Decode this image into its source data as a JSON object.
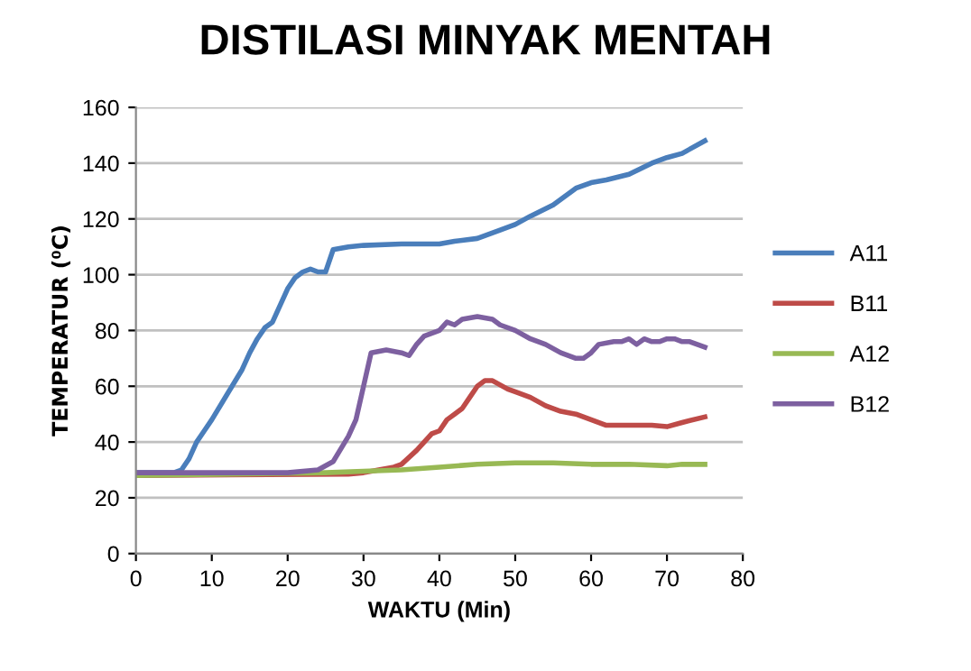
{
  "chart_data": {
    "type": "line",
    "title": "DISTILASI MINYAK MENTAH",
    "xlabel": "WAKTU (Min)",
    "ylabel": "TEMPERATUR (⁰C)",
    "xlim": [
      0,
      80
    ],
    "xticks": [
      0,
      10,
      20,
      30,
      40,
      50,
      60,
      70,
      80
    ],
    "ylim": [
      0,
      160
    ],
    "yticks": [
      0,
      20,
      40,
      60,
      80,
      100,
      120,
      140,
      160
    ],
    "grid": "y",
    "legend": "right",
    "marker": "none",
    "series": [
      {
        "name": "A11",
        "color": "#4a7ebb",
        "x": [
          0,
          5,
          6,
          7,
          8,
          9,
          10,
          12,
          14,
          15,
          16,
          17,
          18,
          19,
          20,
          21,
          22,
          23,
          24,
          25,
          26,
          28,
          30,
          35,
          40,
          42,
          45,
          48,
          50,
          52,
          55,
          58,
          60,
          62,
          65,
          68,
          70,
          72,
          75
        ],
        "values": [
          29,
          29,
          30,
          34,
          40,
          44,
          48,
          57,
          66,
          72,
          77,
          81,
          83,
          89,
          95,
          99,
          101,
          102,
          101,
          101,
          109,
          110,
          110.5,
          111,
          111,
          112,
          113,
          116,
          118,
          121,
          125,
          131,
          133,
          134,
          136,
          140,
          142,
          143.5,
          148
        ]
      },
      {
        "name": "B11",
        "color": "#be4b48",
        "x": [
          0,
          28,
          30,
          32,
          34,
          35,
          37,
          39,
          40,
          41,
          42,
          43,
          44,
          45,
          46,
          47,
          49,
          50,
          52,
          54,
          56,
          58,
          60,
          62,
          64,
          66,
          68,
          70,
          72,
          75
        ],
        "values": [
          28,
          28.5,
          29,
          30,
          31,
          32,
          37,
          43,
          44,
          48,
          50,
          52,
          56,
          60,
          62,
          62,
          59,
          58,
          56,
          53,
          51,
          50,
          48,
          46,
          46,
          46,
          46,
          45.5,
          47,
          49
        ]
      },
      {
        "name": "A12",
        "color": "#98b954",
        "x": [
          0,
          25,
          30,
          35,
          40,
          45,
          50,
          55,
          60,
          65,
          70,
          72,
          75
        ],
        "values": [
          28,
          29,
          29.5,
          30,
          31,
          32,
          32.5,
          32.5,
          32,
          32,
          31.5,
          32,
          32
        ]
      },
      {
        "name": "B12",
        "color": "#7d60a0",
        "x": [
          0,
          20,
          24,
          26,
          28,
          29,
          30,
          31,
          33,
          35,
          36,
          37,
          38,
          40,
          41,
          42,
          43,
          45,
          47,
          48,
          50,
          52,
          54,
          56,
          58,
          59,
          60,
          61,
          63,
          64,
          65,
          66,
          67,
          68,
          69,
          70,
          71,
          72,
          73,
          75
        ],
        "values": [
          29,
          29,
          30,
          33,
          42,
          48,
          60,
          72,
          73,
          72,
          71,
          75,
          78,
          80,
          83,
          82,
          84,
          85,
          84,
          82,
          80,
          77,
          75,
          72,
          70,
          70,
          72,
          75,
          76,
          76,
          77,
          75,
          77,
          76,
          76,
          77,
          77,
          76,
          76,
          74
        ]
      }
    ]
  }
}
